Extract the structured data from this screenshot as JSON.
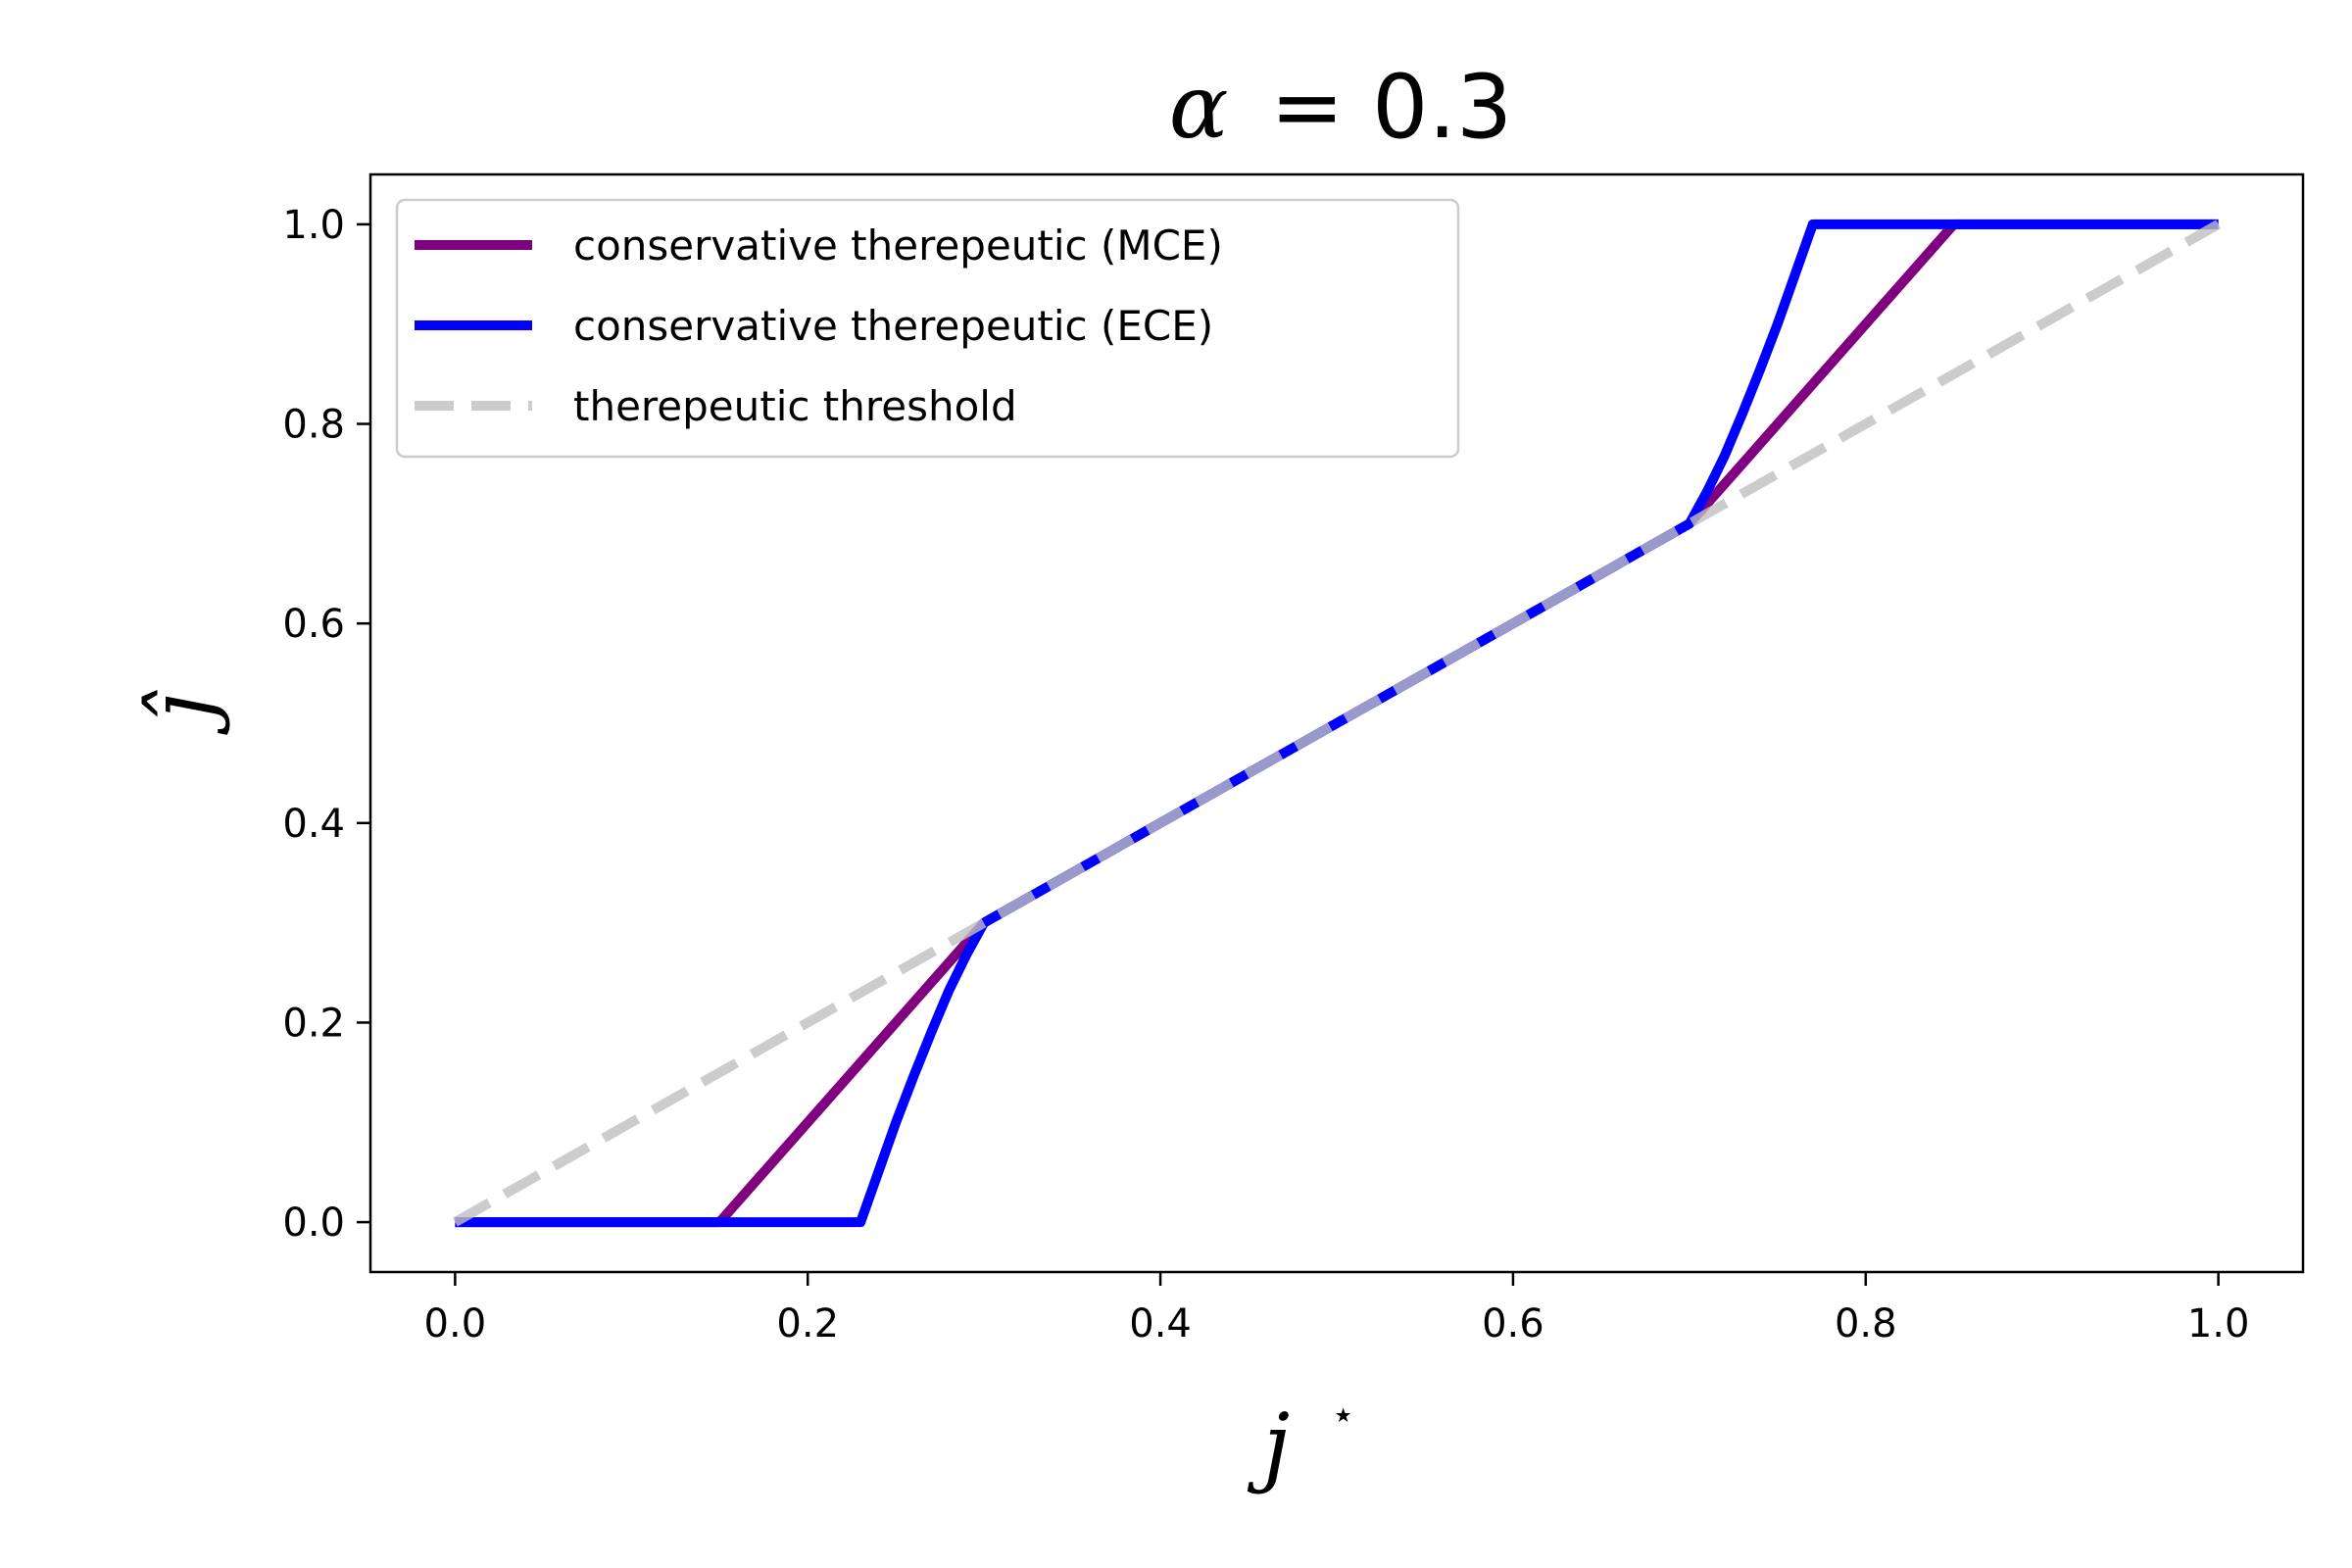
{
  "chart_data": {
    "type": "line",
    "title": "α = 0.3",
    "title_symbol": "α",
    "title_value": "= 0.3",
    "xlabel": "j",
    "xlabel_superscript": "⋆",
    "ylabel": "ĵ",
    "xlim": [
      -0.048,
      1.048
    ],
    "ylim": [
      -0.05,
      1.05
    ],
    "xticks": [
      0.0,
      0.2,
      0.4,
      0.6,
      0.8,
      1.0
    ],
    "xtick_labels": [
      "0.0",
      "0.2",
      "0.4",
      "0.6",
      "0.8",
      "1.0"
    ],
    "yticks": [
      0.0,
      0.2,
      0.4,
      0.6,
      0.8,
      1.0
    ],
    "ytick_labels": [
      "0.0",
      "0.2",
      "0.4",
      "0.6",
      "0.8",
      "1.0"
    ],
    "grid": false,
    "legend_position": "upper-left",
    "series": [
      {
        "name": "conservative therepeutic (MCE)",
        "color": "#800080",
        "style": "solid",
        "x": [
          0.0,
          0.15,
          0.3,
          0.7,
          0.85,
          1.0
        ],
        "y": [
          0.0,
          0.0,
          0.3,
          0.7,
          1.0,
          1.0
        ]
      },
      {
        "name": "conservative therepeutic (ECE)",
        "color": "#0000ff",
        "style": "solid",
        "x": [
          0.0,
          0.23,
          0.24,
          0.25,
          0.26,
          0.27,
          0.28,
          0.29,
          0.3,
          0.7,
          0.71,
          0.72,
          0.73,
          0.74,
          0.75,
          0.76,
          0.77,
          1.0
        ],
        "y": [
          0.0,
          0.0,
          0.05,
          0.1,
          0.146,
          0.19,
          0.232,
          0.268,
          0.3,
          0.7,
          0.732,
          0.768,
          0.81,
          0.854,
          0.9,
          0.95,
          1.0,
          1.0
        ]
      },
      {
        "name": "therepeutic threshold",
        "color": "#bfbfbf",
        "style": "dashed",
        "alpha": 0.8,
        "x": [
          0.0,
          1.0
        ],
        "y": [
          0.0,
          1.0
        ]
      }
    ]
  }
}
